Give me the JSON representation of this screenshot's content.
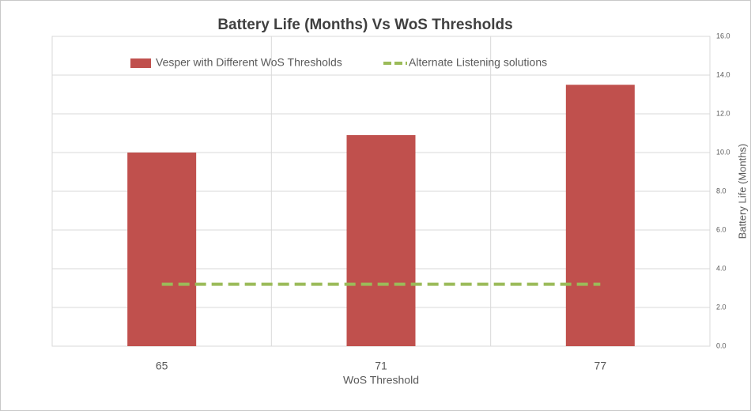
{
  "chart_data": {
    "type": "bar",
    "title": "Battery Life (Months) Vs WoS Thresholds",
    "x_label": "WoS Threshold",
    "y_label": "Battery Life (Months)",
    "categories": [
      "65",
      "71",
      "77"
    ],
    "series": [
      {
        "name": "Vesper with Different WoS Thresholds",
        "type": "bar",
        "color": "#c0504d",
        "values": [
          10.0,
          10.9,
          13.5
        ]
      },
      {
        "name": "Alternate Listening solutions",
        "type": "line",
        "dashed": true,
        "color": "#9bbb59",
        "values": [
          3.2,
          3.2,
          3.2
        ]
      }
    ],
    "ylim": [
      0,
      16
    ],
    "yticks": [
      {
        "value": 0,
        "label": "0.0"
      },
      {
        "value": 2,
        "label": "2.0"
      },
      {
        "value": 4,
        "label": "4.0"
      },
      {
        "value": 6,
        "label": "6.0"
      },
      {
        "value": 8,
        "label": "8.0"
      },
      {
        "value": 10,
        "label": "10.0"
      },
      {
        "value": 12,
        "label": "12.0"
      },
      {
        "value": 14,
        "label": "14.0"
      },
      {
        "value": 16,
        "label": "16.0"
      }
    ],
    "y_axis_side": "right",
    "grid": true,
    "legend_position": "top"
  }
}
